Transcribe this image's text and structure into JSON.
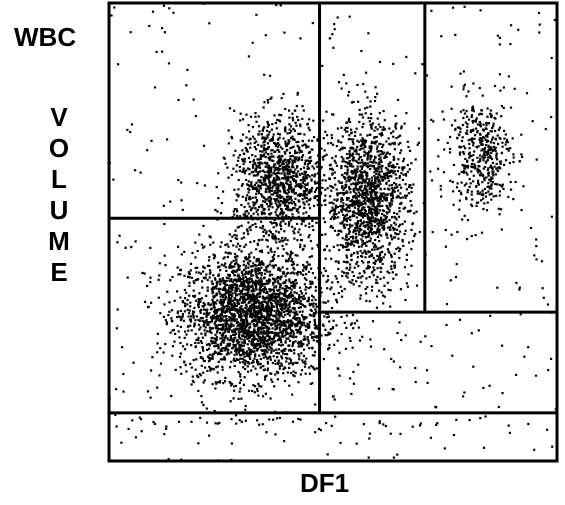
{
  "chart_data": {
    "type": "scatter",
    "title": "",
    "corner_label": "WBC",
    "ylabel": "VOLUME",
    "xlabel": "DF1",
    "xlim": [
      0,
      100
    ],
    "ylim": [
      0,
      100
    ],
    "grid": false,
    "axis_ticks": false,
    "point_color": "#000000",
    "gates": {
      "vertical_divider_x": 47,
      "horizontal_divider_y": 53,
      "right_divider_x": 70.5,
      "lower_right_divider_y": 32.5,
      "bottom_band_y": 10.5
    },
    "clusters": [
      {
        "name": "",
        "center": [
          32,
          32
        ],
        "spread": [
          8,
          7
        ],
        "count": 2600
      },
      {
        "name": "",
        "center": [
          38,
          61
        ],
        "spread": [
          5,
          7
        ],
        "count": 1100
      },
      {
        "name": "",
        "center": [
          58,
          57
        ],
        "spread": [
          4.5,
          9
        ],
        "count": 1400
      },
      {
        "name": "",
        "center": [
          83,
          67
        ],
        "spread": [
          3.5,
          6
        ],
        "count": 420
      }
    ],
    "background_points": 380
  }
}
